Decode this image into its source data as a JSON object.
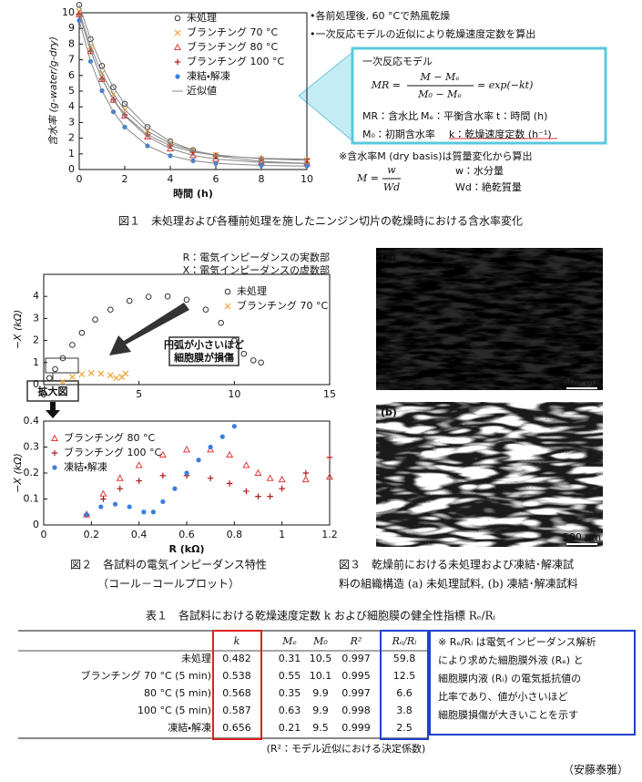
{
  "chart_data": [
    {
      "type": "scatter",
      "x_label": "時間 (h)",
      "y_label": "含水率 (g-water/g-dry)",
      "x": [
        0,
        0.5,
        1,
        1.5,
        2,
        3,
        4,
        5,
        6,
        8,
        10
      ],
      "xlim": [
        0,
        10
      ],
      "ylim": [
        0,
        10
      ],
      "xticks": [
        0,
        2,
        4,
        6,
        8,
        10
      ],
      "yticks": [
        0,
        1,
        2,
        3,
        4,
        5,
        6,
        7,
        8,
        9,
        10
      ],
      "legend": "upper left",
      "series": [
        {
          "name": "未処理",
          "color": "#333333",
          "marker": "circle",
          "values": [
            10.5,
            8.32,
            6.61,
            5.25,
            4.19,
            2.71,
            1.79,
            1.23,
            0.87,
            0.52,
            0.39
          ]
        },
        {
          "name": "ブランチング 70 °C",
          "color": "#f0a030",
          "marker": "x",
          "values": [
            10.1,
            7.85,
            6.13,
            4.81,
            3.81,
            2.45,
            1.66,
            1.2,
            0.93,
            0.68,
            0.59
          ]
        },
        {
          "name": "ブランチング 80 °C",
          "color": "#e03a3a",
          "marker": "triangle",
          "values": [
            9.9,
            7.54,
            5.76,
            4.43,
            3.42,
            2.09,
            1.33,
            0.9,
            0.67,
            0.45,
            0.38
          ]
        },
        {
          "name": "ブランチング 100 °C",
          "color": "#b01c1c",
          "marker": "plus",
          "values": [
            9.9,
            7.55,
            5.78,
            4.48,
            3.49,
            2.22,
            1.52,
            1.12,
            0.9,
            0.71,
            0.66
          ]
        },
        {
          "name": "凍結・解凍",
          "color": "#3a7ee0",
          "marker": "star",
          "values": [
            9.5,
            6.9,
            5.03,
            3.68,
            2.71,
            1.51,
            0.88,
            0.56,
            0.39,
            0.26,
            0.22
          ]
        },
        {
          "name": "近似値",
          "color": "#888888",
          "line": true,
          "x": [
            0,
            0.5,
            1,
            1.5,
            2,
            3,
            4,
            5,
            6,
            8,
            10,
            null,
            0,
            0.5,
            1,
            1.5,
            2,
            3,
            4,
            5,
            6,
            8,
            10,
            null,
            0,
            0.5,
            1,
            1.5,
            2,
            3,
            4,
            5,
            6,
            8,
            10,
            null,
            0,
            0.5,
            1,
            1.5,
            2,
            3,
            4,
            5,
            6,
            8,
            10,
            null,
            0,
            0.5,
            1,
            1.5,
            2,
            3,
            4,
            5,
            6,
            8,
            10
          ],
          "values": [
            10.5,
            8.32,
            6.61,
            5.25,
            4.19,
            2.71,
            1.79,
            1.23,
            0.87,
            0.52,
            0.39,
            null,
            10.1,
            7.85,
            6.13,
            4.81,
            3.81,
            2.45,
            1.66,
            1.2,
            0.93,
            0.68,
            0.59,
            null,
            9.9,
            7.54,
            5.76,
            4.43,
            3.42,
            2.09,
            1.33,
            0.9,
            0.67,
            0.45,
            0.38,
            null,
            9.9,
            7.55,
            5.78,
            4.48,
            3.49,
            2.22,
            1.52,
            1.12,
            0.9,
            0.71,
            0.66,
            null,
            9.5,
            6.9,
            5.03,
            3.68,
            2.71,
            1.51,
            0.88,
            0.56,
            0.39,
            0.26,
            0.22
          ]
        }
      ]
    },
    {
      "type": "scatter",
      "y_label": "−X (kΩ)",
      "xlim": [
        0,
        15
      ],
      "ylim": [
        0,
        5
      ],
      "xticks": [
        0,
        5,
        10,
        15
      ],
      "yticks": [
        0,
        1,
        2,
        3,
        4
      ],
      "legend": "upper right",
      "annotations": [
        "R：電気インピーダンスの実数部",
        "X：電気インピーダンスの虚数部",
        "円弧が小さいほど",
        "細胞膜が損傷",
        "拡大図"
      ],
      "series": [
        {
          "name": "未処理",
          "color": "#333333",
          "marker": "circle",
          "x": [
            0.3,
            0.6,
            1.0,
            1.5,
            2.0,
            2.7,
            3.5,
            4.5,
            5.5,
            6.5,
            7.5,
            8.5,
            9.3,
            10.0,
            10.5,
            11.0,
            11.4
          ],
          "values": [
            0.3,
            0.7,
            1.2,
            1.8,
            2.35,
            2.95,
            3.4,
            3.8,
            3.98,
            4.0,
            3.85,
            3.4,
            2.8,
            2.0,
            1.4,
            1.1,
            1.0
          ]
        },
        {
          "name": "ブランチング 70 °C",
          "color": "#f0a030",
          "marker": "x",
          "x": [
            1.0,
            1.5,
            2.0,
            2.5,
            3.0,
            3.5,
            3.8,
            4.1,
            4.3
          ],
          "values": [
            0.12,
            0.35,
            0.47,
            0.52,
            0.5,
            0.42,
            0.3,
            0.35,
            0.5
          ]
        }
      ]
    },
    {
      "type": "scatter",
      "x_label": "R (kΩ)",
      "y_label": "−X (kΩ)",
      "xlim": [
        0,
        1.2
      ],
      "ylim": [
        0,
        0.4
      ],
      "xticks": [
        0,
        0.2,
        0.4,
        0.6,
        0.8,
        1,
        1.2
      ],
      "yticks": [
        0,
        0.1,
        0.2,
        0.3,
        0.4
      ],
      "legend": "upper left",
      "series": [
        {
          "name": "ブランチング 80 °C",
          "color": "#e03a3a",
          "marker": "triangle",
          "x": [
            0.18,
            0.25,
            0.32,
            0.4,
            0.5,
            0.6,
            0.7,
            0.78,
            0.85,
            0.9,
            0.95,
            1.0,
            1.1,
            1.2
          ],
          "values": [
            0.04,
            0.12,
            0.18,
            0.23,
            0.27,
            0.29,
            0.29,
            0.27,
            0.23,
            0.2,
            0.18,
            0.175,
            0.175,
            0.185
          ]
        },
        {
          "name": "ブランチング 100 °C",
          "color": "#b01c1c",
          "marker": "plus",
          "x": [
            0.18,
            0.25,
            0.32,
            0.4,
            0.5,
            0.6,
            0.7,
            0.78,
            0.85,
            0.9,
            0.95,
            1.0,
            1.1,
            1.2
          ],
          "values": [
            0.04,
            0.1,
            0.14,
            0.17,
            0.19,
            0.19,
            0.18,
            0.16,
            0.13,
            0.11,
            0.11,
            0.14,
            0.2,
            0.26
          ]
        },
        {
          "name": "凍結・解凍",
          "color": "#3a7ee0",
          "marker": "star",
          "x": [
            0.18,
            0.24,
            0.3,
            0.36,
            0.42,
            0.46,
            0.5,
            0.55,
            0.6,
            0.65,
            0.7,
            0.75,
            0.8
          ],
          "values": [
            0.04,
            0.07,
            0.08,
            0.07,
            0.05,
            0.05,
            0.09,
            0.14,
            0.2,
            0.25,
            0.3,
            0.34,
            0.38
          ]
        }
      ]
    }
  ],
  "figure1_notes": {
    "bullets": [
      "•各前処理後, 60 °Cで熱風乾燥",
      "•一次反応モデルの近似により乾燥速度定数を算出"
    ],
    "box_title": "一次反応モデル",
    "eq_lhs": "MR =",
    "eq_num": "M − Mₑ",
    "eq_den": "M₀ − Mₑ",
    "eq_rhs": "= exp(−kt)",
    "defs": [
      "MR：含水比",
      "Mₑ：平衡含水率",
      "t：時間 (h)",
      "M₀：初期含水率",
      "k：乾燥速度定数 (h⁻¹)"
    ],
    "note": "※含水率M (dry basis)は質量変化から算出",
    "eq2_lhs": "M =",
    "eq2_num": "w",
    "eq2_den": "Wd",
    "defs2": [
      "w：水分量",
      "Wd：絶乾質量"
    ]
  },
  "figure1_caption": "図１　未処理および各種前処理を施したニンジン切片の乾燥時における含水率変化",
  "figure2_caption": [
    "図２　各試料の電気インピーダンス特性",
    "（コール－コールプロット）"
  ],
  "figure3": {
    "labels": [
      "(a)",
      "(b)"
    ],
    "scale": [
      "500 μm",
      "500 μm"
    ],
    "caption": [
      "図３　乾燥前における未処理および凍結･解凍試",
      "料の組織構造 (a) 未処理試料, (b) 凍結･解凍試料"
    ]
  },
  "table": {
    "caption": "表１　各試料における乾燥速度定数 k および細胞膜の健全性指標 Rₑ/Rᵢ",
    "columns": [
      "k",
      "Mₑ",
      "M₀",
      "R²",
      "Rₑ/Rᵢ"
    ],
    "rows": [
      {
        "label": "未処理",
        "values": [
          0.482,
          0.31,
          10.5,
          0.997,
          59.8
        ]
      },
      {
        "label": "ブランチング 70 °C (5 min)",
        "values": [
          0.538,
          0.55,
          10.1,
          0.995,
          12.5
        ]
      },
      {
        "label": "80 °C (5 min)",
        "values": [
          0.568,
          0.35,
          9.9,
          0.997,
          6.6
        ]
      },
      {
        "label": "100 °C (5 min)",
        "values": [
          0.587,
          0.63,
          9.9,
          0.998,
          3.8
        ]
      },
      {
        "label": "凍結・解凍",
        "values": [
          0.656,
          0.21,
          9.5,
          0.999,
          2.5
        ]
      }
    ],
    "note": [
      "※ Rₑ/Rᵢ は電気インピーダンス解析",
      "により求めた細胞膜外液 (Rₑ) と",
      "細胞膜内液 (Rᵢ) の電気抵抗値の",
      "比率であり、値が小さいほど",
      "細胞膜損傷が大きいことを示す"
    ],
    "footnote": "(R²：モデル近似における決定係数)"
  },
  "author": "（安藤泰雅）"
}
